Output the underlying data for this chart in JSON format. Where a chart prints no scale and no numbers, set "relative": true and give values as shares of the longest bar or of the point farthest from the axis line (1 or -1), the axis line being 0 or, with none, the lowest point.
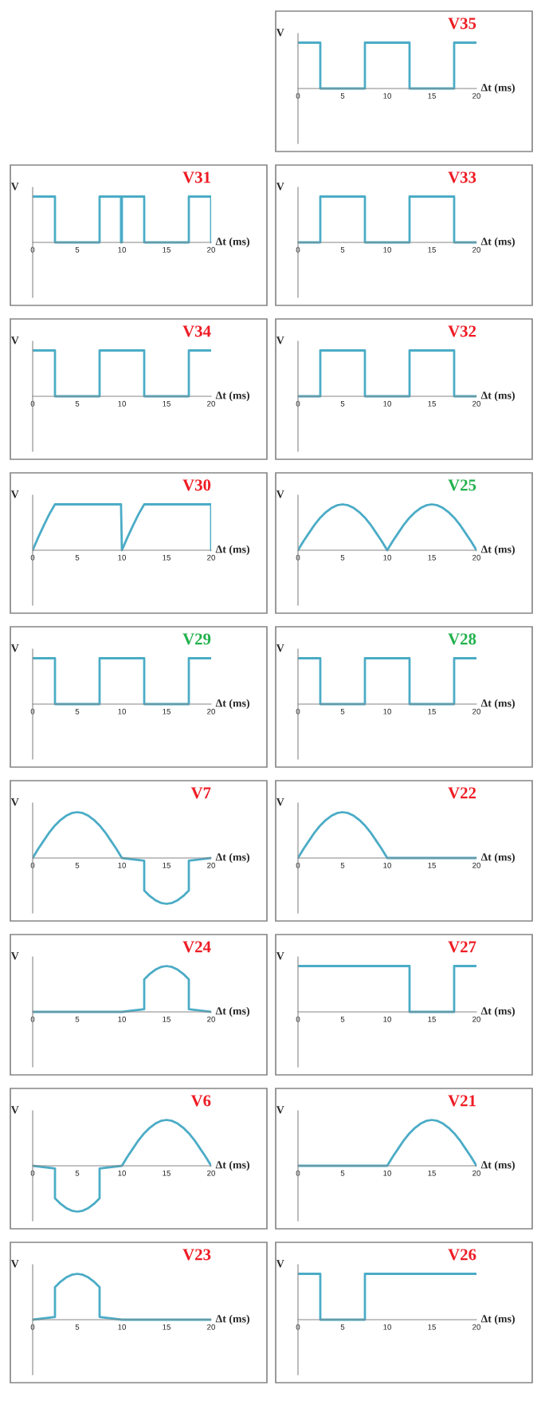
{
  "chart_data": [
    {
      "type": "line",
      "title": "V35",
      "xlabel": "Δt (ms)",
      "ylabel": "V",
      "relative": true,
      "color": "#4bacc6",
      "xlim": [
        0,
        20
      ],
      "xticks": [
        0,
        5,
        10,
        15,
        20
      ],
      "x": [
        0,
        2.5,
        2.5,
        7.5,
        7.5,
        12.5,
        12.5,
        17.5,
        17.5,
        20
      ],
      "values": [
        1,
        1,
        0,
        0,
        1,
        1,
        0,
        0,
        1,
        1
      ]
    },
    {
      "type": "line",
      "title": "V31",
      "xlabel": "Δt (ms)",
      "ylabel": "V",
      "relative": true,
      "color": "#4bacc6",
      "xlim": [
        0,
        20
      ],
      "xticks": [
        0,
        5,
        10,
        15,
        20
      ],
      "x": [
        0,
        2.5,
        2.5,
        7.5,
        7.5,
        9.9,
        9.9,
        10,
        10,
        12.5,
        12.5,
        17.5,
        17.5,
        20,
        20
      ],
      "values": [
        1,
        1,
        0,
        0,
        1,
        1,
        0,
        0,
        1,
        1,
        0,
        0,
        1,
        1,
        0
      ]
    },
    {
      "type": "line",
      "title": "V33",
      "xlabel": "Δt (ms)",
      "ylabel": "V",
      "relative": true,
      "color": "#4bacc6",
      "xlim": [
        0,
        20
      ],
      "xticks": [
        0,
        5,
        10,
        15,
        20
      ],
      "x": [
        0,
        2.5,
        2.5,
        7.5,
        7.5,
        12.5,
        12.5,
        17.5,
        17.5,
        20
      ],
      "values": [
        0,
        0,
        1,
        1,
        0,
        0,
        1,
        1,
        0,
        0
      ]
    },
    {
      "type": "line",
      "title": "V34",
      "xlabel": "Δt (ms)",
      "ylabel": "V",
      "relative": true,
      "color": "#4bacc6",
      "xlim": [
        0,
        20
      ],
      "xticks": [
        0,
        5,
        10,
        15,
        20
      ],
      "x": [
        0,
        2.5,
        2.5,
        7.5,
        7.5,
        12.5,
        12.5,
        17.5,
        17.5,
        20
      ],
      "values": [
        1,
        1,
        0,
        0,
        1,
        1,
        0,
        0,
        1,
        1
      ]
    },
    {
      "type": "line",
      "title": "V32",
      "xlabel": "Δt (ms)",
      "ylabel": "V",
      "relative": true,
      "color": "#4bacc6",
      "xlim": [
        0,
        20
      ],
      "xticks": [
        0,
        5,
        10,
        15,
        20
      ],
      "x": [
        0,
        2.5,
        2.5,
        7.5,
        7.5,
        12.5,
        12.5,
        17.5,
        17.5,
        20
      ],
      "values": [
        0,
        0,
        1,
        1,
        0,
        0,
        1,
        1,
        0,
        0
      ]
    },
    {
      "type": "line",
      "title": "V30",
      "xlabel": "Δt (ms)",
      "ylabel": "V",
      "relative": true,
      "color": "#4bacc6",
      "xlim": [
        0,
        20
      ],
      "xticks": [
        0,
        5,
        10,
        15,
        20
      ],
      "x": [
        0,
        0.625,
        1.25,
        1.875,
        2.5,
        9.9,
        10,
        10.625,
        11.25,
        11.875,
        12.5,
        20,
        20
      ],
      "values": [
        0,
        0.28,
        0.54,
        0.79,
        1,
        1,
        0,
        0.28,
        0.54,
        0.79,
        1,
        1,
        0
      ]
    },
    {
      "type": "line",
      "title": "V25",
      "xlabel": "Δt (ms)",
      "ylabel": "V",
      "relative": true,
      "color": "#4bacc6",
      "xlim": [
        0,
        20
      ],
      "xticks": [
        0,
        5,
        10,
        15,
        20
      ],
      "x": [
        0,
        0.625,
        1.25,
        1.875,
        2.5,
        3.125,
        3.75,
        4.375,
        5,
        5.625,
        6.25,
        6.875,
        7.5,
        8.125,
        8.75,
        9.375,
        10,
        10.625,
        11.25,
        11.875,
        12.5,
        13.125,
        13.75,
        14.375,
        15,
        15.625,
        16.25,
        16.875,
        17.5,
        18.125,
        18.75,
        19.375,
        20
      ],
      "values": [
        0,
        0.2,
        0.38,
        0.56,
        0.71,
        0.83,
        0.92,
        0.98,
        1,
        0.98,
        0.92,
        0.83,
        0.71,
        0.56,
        0.38,
        0.2,
        0,
        0.2,
        0.38,
        0.56,
        0.71,
        0.83,
        0.92,
        0.98,
        1,
        0.98,
        0.92,
        0.83,
        0.71,
        0.56,
        0.38,
        0.2,
        0
      ]
    },
    {
      "type": "line",
      "title": "V29",
      "xlabel": "Δt (ms)",
      "ylabel": "V",
      "relative": true,
      "color": "#4bacc6",
      "xlim": [
        0,
        20
      ],
      "xticks": [
        0,
        5,
        10,
        15,
        20
      ],
      "x": [
        0,
        2.5,
        2.5,
        7.5,
        7.5,
        12.5,
        12.5,
        17.5,
        17.5,
        20
      ],
      "values": [
        1,
        1,
        0,
        0,
        1,
        1,
        0,
        0,
        1,
        1
      ]
    },
    {
      "type": "line",
      "title": "V28",
      "xlabel": "Δt (ms)",
      "ylabel": "V",
      "relative": true,
      "color": "#4bacc6",
      "xlim": [
        0,
        20
      ],
      "xticks": [
        0,
        5,
        10,
        15,
        20
      ],
      "x": [
        0,
        2.5,
        2.5,
        7.5,
        7.5,
        12.5,
        12.5,
        17.5,
        17.5,
        20
      ],
      "values": [
        1,
        1,
        0,
        0,
        1,
        1,
        0,
        0,
        1,
        1
      ]
    },
    {
      "type": "line",
      "title": "V7",
      "xlabel": "Δt (ms)",
      "ylabel": "V",
      "relative": true,
      "color": "#4bacc6",
      "xlim": [
        0,
        20
      ],
      "xticks": [
        0,
        5,
        10,
        15,
        20
      ],
      "x": [
        0,
        0.625,
        1.25,
        1.875,
        2.5,
        3.125,
        3.75,
        4.375,
        5,
        5.625,
        6.25,
        6.875,
        7.5,
        8.125,
        8.75,
        9.375,
        10,
        12.5,
        12.5,
        13.125,
        13.75,
        14.375,
        15,
        15.625,
        16.25,
        16.875,
        17.5,
        17.5,
        20
      ],
      "values": [
        0,
        0.2,
        0.38,
        0.56,
        0.71,
        0.83,
        0.92,
        0.98,
        1,
        0.98,
        0.92,
        0.83,
        0.71,
        0.56,
        0.38,
        0.2,
        0,
        -0.06,
        -0.71,
        -0.83,
        -0.92,
        -0.98,
        -1,
        -0.98,
        -0.92,
        -0.83,
        -0.71,
        -0.06,
        0
      ]
    },
    {
      "type": "line",
      "title": "V22",
      "xlabel": "Δt (ms)",
      "ylabel": "V",
      "relative": true,
      "color": "#4bacc6",
      "xlim": [
        0,
        20
      ],
      "xticks": [
        0,
        5,
        10,
        15,
        20
      ],
      "x": [
        0,
        0.625,
        1.25,
        1.875,
        2.5,
        3.125,
        3.75,
        4.375,
        5,
        5.625,
        6.25,
        6.875,
        7.5,
        8.125,
        8.75,
        9.375,
        10,
        20
      ],
      "values": [
        0,
        0.2,
        0.38,
        0.56,
        0.71,
        0.83,
        0.92,
        0.98,
        1,
        0.98,
        0.92,
        0.83,
        0.71,
        0.56,
        0.38,
        0.2,
        0,
        0
      ]
    },
    {
      "type": "line",
      "title": "V24",
      "xlabel": "Δt (ms)",
      "ylabel": "V",
      "relative": true,
      "color": "#4bacc6",
      "xlim": [
        0,
        20
      ],
      "xticks": [
        0,
        5,
        10,
        15,
        20
      ],
      "x": [
        0,
        10,
        12.5,
        12.5,
        13.125,
        13.75,
        14.375,
        15,
        15.625,
        16.25,
        16.875,
        17.5,
        17.5,
        20
      ],
      "values": [
        0,
        0,
        0.06,
        0.71,
        0.83,
        0.92,
        0.98,
        1,
        0.98,
        0.92,
        0.83,
        0.71,
        0.06,
        0
      ]
    },
    {
      "type": "line",
      "title": "V27",
      "xlabel": "Δt (ms)",
      "ylabel": "V",
      "relative": true,
      "color": "#4bacc6",
      "xlim": [
        0,
        20
      ],
      "xticks": [
        0,
        5,
        10,
        15,
        20
      ],
      "x": [
        0,
        12.5,
        12.5,
        17.5,
        17.5,
        20
      ],
      "values": [
        1,
        1,
        0,
        0,
        1,
        1
      ]
    },
    {
      "type": "line",
      "title": "V6",
      "xlabel": "Δt (ms)",
      "ylabel": "V",
      "relative": true,
      "color": "#4bacc6",
      "xlim": [
        0,
        20
      ],
      "xticks": [
        0,
        5,
        10,
        15,
        20
      ],
      "x": [
        0,
        2.5,
        2.5,
        3.125,
        3.75,
        4.375,
        5,
        5.625,
        6.25,
        6.875,
        7.5,
        7.5,
        10,
        10.625,
        11.25,
        11.875,
        12.5,
        13.125,
        13.75,
        14.375,
        15,
        15.625,
        16.25,
        16.875,
        17.5,
        18.125,
        18.75,
        19.375,
        20
      ],
      "values": [
        0,
        -0.06,
        -0.71,
        -0.83,
        -0.92,
        -0.98,
        -1,
        -0.98,
        -0.92,
        -0.83,
        -0.71,
        -0.06,
        0,
        0.2,
        0.38,
        0.56,
        0.71,
        0.83,
        0.92,
        0.98,
        1,
        0.98,
        0.92,
        0.83,
        0.71,
        0.56,
        0.38,
        0.2,
        0
      ]
    },
    {
      "type": "line",
      "title": "V21",
      "xlabel": "Δt (ms)",
      "ylabel": "V",
      "relative": true,
      "color": "#4bacc6",
      "xlim": [
        0,
        20
      ],
      "xticks": [
        0,
        5,
        10,
        15,
        20
      ],
      "x": [
        0,
        10,
        10.625,
        11.25,
        11.875,
        12.5,
        13.125,
        13.75,
        14.375,
        15,
        15.625,
        16.25,
        16.875,
        17.5,
        18.125,
        18.75,
        19.375,
        20
      ],
      "values": [
        0,
        0,
        0.2,
        0.38,
        0.56,
        0.71,
        0.83,
        0.92,
        0.98,
        1,
        0.98,
        0.92,
        0.83,
        0.71,
        0.56,
        0.38,
        0.2,
        0
      ]
    },
    {
      "type": "line",
      "title": "V23",
      "xlabel": "Δt (ms)",
      "ylabel": "V",
      "relative": true,
      "color": "#4bacc6",
      "xlim": [
        0,
        20
      ],
      "xticks": [
        0,
        5,
        10,
        15,
        20
      ],
      "x": [
        0,
        2.5,
        2.5,
        3.125,
        3.75,
        4.375,
        5,
        5.625,
        6.25,
        6.875,
        7.5,
        7.5,
        10,
        20
      ],
      "values": [
        0,
        0.06,
        0.71,
        0.83,
        0.92,
        0.98,
        1,
        0.98,
        0.92,
        0.83,
        0.71,
        0.06,
        0,
        0
      ]
    },
    {
      "type": "line",
      "title": "V26",
      "xlabel": "Δt (ms)",
      "ylabel": "V",
      "relative": true,
      "color": "#4bacc6",
      "xlim": [
        0,
        20
      ],
      "xticks": [
        0,
        5,
        10,
        15,
        20
      ],
      "x": [
        0,
        2.5,
        2.5,
        7.5,
        7.5,
        20
      ],
      "values": [
        1,
        1,
        0,
        0,
        1,
        1
      ]
    }
  ]
}
